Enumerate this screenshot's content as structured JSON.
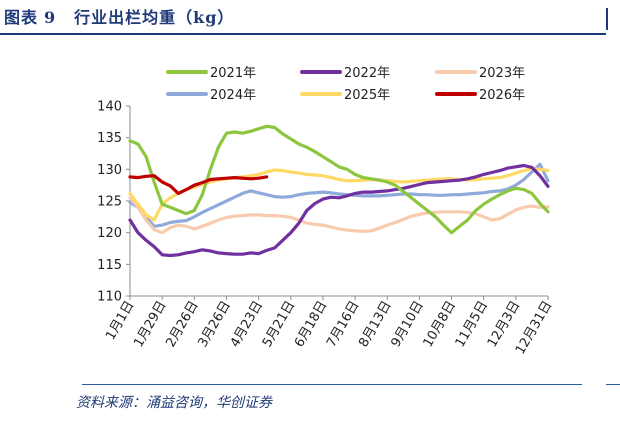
{
  "figure": {
    "label": "图表",
    "number": "9",
    "title": "行业出栏均重（kg）",
    "source": "资料来源：涌益咨询，华创证券"
  },
  "chart_data": {
    "type": "line",
    "title": "行业出栏均重（kg）",
    "xlabel": "",
    "ylabel": "",
    "ylim": [
      110,
      140
    ],
    "yticks": [
      110,
      115,
      120,
      125,
      130,
      135,
      140
    ],
    "xlim": [
      1,
      365
    ],
    "x_ticks": [
      {
        "day": 1,
        "label": "1月1日"
      },
      {
        "day": 29,
        "label": "1月29日"
      },
      {
        "day": 57,
        "label": "2月26日"
      },
      {
        "day": 85,
        "label": "3月26日"
      },
      {
        "day": 113,
        "label": "4月23日"
      },
      {
        "day": 141,
        "label": "5月21日"
      },
      {
        "day": 169,
        "label": "6月18日"
      },
      {
        "day": 197,
        "label": "7月16日"
      },
      {
        "day": 225,
        "label": "8月13日"
      },
      {
        "day": 253,
        "label": "9月10日"
      },
      {
        "day": 281,
        "label": "10月8日"
      },
      {
        "day": 309,
        "label": "11月5日"
      },
      {
        "day": 337,
        "label": "12月3日"
      },
      {
        "day": 365,
        "label": "12月31日"
      }
    ],
    "grid": false,
    "legend_position": "top",
    "series": [
      {
        "name": "2021年",
        "color": "#8cc63f",
        "x": [
          1,
          8,
          15,
          22,
          29,
          36,
          43,
          50,
          57,
          64,
          71,
          78,
          85,
          92,
          99,
          106,
          113,
          120,
          127,
          134,
          141,
          148,
          155,
          162,
          169,
          176,
          183,
          190,
          197,
          204,
          211,
          218,
          225,
          232,
          239,
          246,
          253,
          260,
          267,
          274,
          281,
          288,
          295,
          302,
          309,
          316,
          323,
          330,
          337,
          344,
          351,
          358,
          365
        ],
        "y": [
          134.5,
          134,
          132,
          128,
          124.5,
          124,
          123.5,
          123,
          123.5,
          126,
          130,
          133.5,
          135.7,
          135.9,
          135.7,
          136,
          136.4,
          136.8,
          136.6,
          135.6,
          134.8,
          134,
          133.5,
          132.8,
          132,
          131.2,
          130.4,
          130,
          129.2,
          128.7,
          128.5,
          128.3,
          128,
          127.5,
          126.5,
          125.5,
          124.5,
          123.5,
          122.5,
          121.2,
          120,
          121,
          122,
          123.5,
          124.5,
          125.3,
          126,
          126.6,
          127,
          126.8,
          126.2,
          124.6,
          123.3
        ]
      },
      {
        "name": "2022年",
        "color": "#7030a0",
        "x": [
          1,
          8,
          15,
          22,
          29,
          36,
          43,
          50,
          57,
          64,
          71,
          78,
          85,
          92,
          99,
          106,
          113,
          120,
          127,
          134,
          141,
          148,
          155,
          162,
          169,
          176,
          183,
          190,
          197,
          204,
          211,
          218,
          225,
          232,
          239,
          246,
          253,
          260,
          267,
          274,
          281,
          288,
          295,
          302,
          309,
          316,
          323,
          330,
          337,
          344,
          351,
          358,
          365
        ],
        "y": [
          122,
          120,
          118.8,
          117.8,
          116.5,
          116.4,
          116.5,
          116.8,
          117,
          117.3,
          117.1,
          116.8,
          116.7,
          116.6,
          116.6,
          116.8,
          116.7,
          117.2,
          117.6,
          118.8,
          120,
          121.5,
          123.5,
          124.6,
          125.3,
          125.6,
          125.5,
          125.8,
          126.2,
          126.4,
          126.4,
          126.5,
          126.6,
          126.8,
          127,
          127.3,
          127.6,
          127.9,
          128,
          128.1,
          128.2,
          128.3,
          128.5,
          128.8,
          129.2,
          129.5,
          129.8,
          130.2,
          130.4,
          130.6,
          130.3,
          129,
          127.3
        ]
      },
      {
        "name": "2023年",
        "color": "#f8cbad",
        "x": [
          1,
          8,
          15,
          22,
          29,
          36,
          43,
          50,
          57,
          64,
          71,
          78,
          85,
          92,
          99,
          106,
          113,
          120,
          127,
          134,
          141,
          148,
          155,
          162,
          169,
          176,
          183,
          190,
          197,
          204,
          211,
          218,
          225,
          232,
          239,
          246,
          253,
          260,
          267,
          274,
          281,
          288,
          295,
          302,
          309,
          316,
          323,
          330,
          337,
          344,
          351,
          358,
          365
        ],
        "y": [
          125.5,
          124,
          122,
          120.5,
          120,
          120.8,
          121.2,
          121,
          120.6,
          121,
          121.5,
          122,
          122.4,
          122.6,
          122.7,
          122.8,
          122.8,
          122.7,
          122.7,
          122.6,
          122.4,
          122,
          121.5,
          121.3,
          121.2,
          120.9,
          120.6,
          120.4,
          120.3,
          120.2,
          120.3,
          120.7,
          121.2,
          121.6,
          122.1,
          122.6,
          122.9,
          123.1,
          123.2,
          123.3,
          123.3,
          123.3,
          123.2,
          123,
          122.5,
          122,
          122.2,
          122.9,
          123.6,
          124,
          124.2,
          124,
          124.1
        ]
      },
      {
        "name": "2024年",
        "color": "#8eaadb",
        "x": [
          1,
          8,
          15,
          22,
          29,
          36,
          43,
          50,
          57,
          64,
          71,
          78,
          85,
          92,
          99,
          106,
          113,
          120,
          127,
          134,
          141,
          148,
          155,
          162,
          169,
          176,
          183,
          190,
          197,
          204,
          211,
          218,
          225,
          232,
          239,
          246,
          253,
          260,
          267,
          274,
          281,
          288,
          295,
          302,
          309,
          316,
          323,
          330,
          337,
          344,
          351,
          358,
          365
        ],
        "y": [
          124.8,
          124,
          122.5,
          121,
          121.2,
          121.6,
          121.8,
          121.9,
          122.5,
          123.2,
          123.8,
          124.4,
          125,
          125.6,
          126.2,
          126.6,
          126.3,
          126,
          125.7,
          125.6,
          125.7,
          126,
          126.2,
          126.3,
          126.4,
          126.3,
          126.1,
          126,
          125.9,
          125.8,
          125.8,
          125.8,
          125.9,
          126,
          126.1,
          126.1,
          126,
          126,
          125.9,
          125.9,
          126,
          126,
          126.1,
          126.2,
          126.3,
          126.5,
          126.6,
          126.9,
          127.5,
          128.4,
          129.6,
          130.8,
          128.2
        ]
      },
      {
        "name": "2025年",
        "color": "#ffd966",
        "x": [
          1,
          8,
          15,
          22,
          29,
          36,
          43,
          50,
          57,
          64,
          71,
          78,
          85,
          92,
          99,
          106,
          113,
          120,
          127,
          134,
          141,
          148,
          155,
          162,
          169,
          176,
          183,
          190,
          197,
          204,
          211,
          218,
          225,
          232,
          239,
          246,
          253,
          260,
          267,
          274,
          281,
          288,
          295,
          302,
          309,
          316,
          323,
          330,
          337,
          344,
          351,
          358,
          365
        ],
        "y": [
          126.2,
          124.5,
          122.8,
          122,
          124.5,
          125.5,
          126.2,
          126.8,
          127.2,
          127.6,
          128,
          128.3,
          128.5,
          128.7,
          128.8,
          129,
          129.2,
          129.6,
          129.9,
          129.8,
          129.6,
          129.4,
          129.2,
          129.1,
          129,
          128.7,
          128.4,
          128.2,
          128.2,
          128.3,
          128.4,
          128.3,
          128.2,
          128.1,
          128,
          128.1,
          128.2,
          128.3,
          128.4,
          128.5,
          128.5,
          128.4,
          128.3,
          128.4,
          128.5,
          128.6,
          128.7,
          129,
          129.4,
          129.8,
          130.1,
          130,
          129.8
        ]
      },
      {
        "name": "2026年",
        "color": "#c00000",
        "x": [
          1,
          8,
          15,
          22,
          29,
          36,
          43,
          50,
          57,
          64,
          71,
          78,
          85,
          92,
          99,
          106,
          113,
          120
        ],
        "y": [
          128.8,
          128.7,
          128.9,
          129,
          128,
          127.4,
          126.2,
          126.8,
          127.5,
          127.9,
          128.4,
          128.5,
          128.6,
          128.7,
          128.6,
          128.5,
          128.6,
          128.8
        ]
      }
    ]
  }
}
